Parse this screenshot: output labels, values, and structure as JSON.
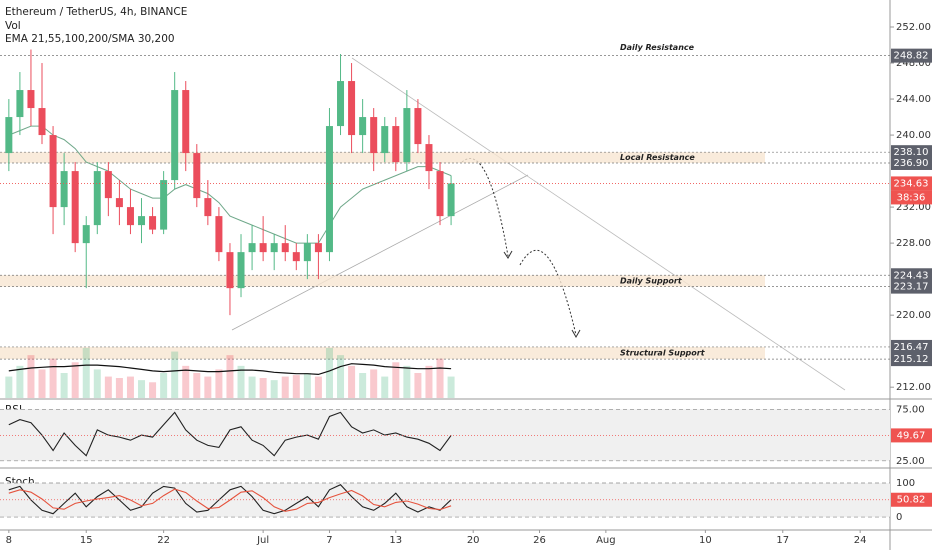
{
  "header": {
    "symbol": "Ethereum / TetherUS, 4h, BINANCE",
    "volume_label": "Vol",
    "indicators_label": "EMA 21,55,100,200/SMA 30,200"
  },
  "chart_data": [
    {
      "type": "candlestick",
      "up_color": "#53b987",
      "down_color": "#eb4d5c",
      "ema_color": "#6fa88a",
      "volume_ma_color": "#111111",
      "xlim": [
        7.2,
        87.7
      ],
      "xticks": [
        8,
        15,
        22,
        {
          "value": 31,
          "label": "Jul"
        },
        {
          "value": 37,
          "label": "7"
        },
        {
          "value": 43,
          "label": "13"
        },
        {
          "value": 50,
          "label": "20"
        },
        {
          "value": 56,
          "label": "26"
        },
        {
          "value": 62,
          "label": "Aug"
        },
        {
          "value": 71,
          "label": "10"
        },
        {
          "value": 78,
          "label": "17"
        },
        {
          "value": 85,
          "label": "24"
        }
      ],
      "ylim": [
        210.8,
        255
      ],
      "yticks": [
        {
          "value": 252,
          "label": "252.00"
        },
        {
          "value": 248,
          "label": "248.00"
        },
        {
          "value": 244,
          "label": "244.00"
        },
        {
          "value": 240,
          "label": "240.00"
        },
        {
          "value": 232,
          "label": "232.00"
        },
        {
          "value": 228,
          "label": "228.00"
        },
        {
          "value": 220,
          "label": "220.00"
        },
        {
          "value": 212,
          "label": "212.00"
        }
      ],
      "x": [
        8,
        9,
        10,
        11,
        12,
        13,
        14,
        15,
        16,
        17,
        18,
        19,
        20,
        21,
        22,
        23,
        24,
        25,
        26,
        27,
        28,
        29,
        30,
        31,
        32,
        33,
        34,
        35,
        36,
        37,
        38,
        39,
        40,
        41,
        42,
        43,
        44,
        45,
        46,
        47,
        48
      ],
      "open": [
        238,
        242,
        245,
        243,
        240,
        232,
        236,
        228,
        230,
        236,
        233,
        232,
        230,
        231,
        229.5,
        235,
        245,
        238,
        233,
        231,
        227,
        223,
        227,
        228,
        227,
        228,
        227,
        226,
        228,
        227,
        241,
        246,
        240,
        242,
        238,
        241,
        237,
        243,
        239,
        236,
        231
      ],
      "high": [
        244,
        247,
        249.5,
        248,
        241,
        238,
        237,
        231,
        237,
        237,
        235,
        234,
        233,
        232,
        236,
        247,
        246,
        239,
        235,
        232,
        228,
        229,
        230,
        231,
        229,
        230,
        228,
        229,
        229,
        243,
        249,
        248,
        244,
        243,
        242,
        242,
        245,
        244,
        240,
        237,
        235.5
      ],
      "low": [
        236,
        240,
        241,
        239,
        229,
        230,
        227,
        223,
        229,
        231,
        230,
        229,
        228,
        229,
        229,
        234,
        236,
        232,
        230,
        226,
        220,
        222,
        225,
        226,
        225,
        226,
        225,
        224,
        224,
        226,
        240,
        238,
        238,
        236,
        237,
        236,
        236,
        238,
        234,
        230,
        230
      ],
      "close": [
        242,
        245,
        243,
        240,
        232,
        236,
        228,
        230,
        236,
        233,
        232,
        230,
        231,
        229.5,
        235,
        245,
        238,
        233,
        231,
        227,
        223,
        227,
        228,
        227,
        228,
        227,
        226,
        228,
        227,
        241,
        246,
        240,
        242,
        238,
        241,
        237,
        243,
        239,
        236,
        231,
        234.63
      ],
      "volume": [
        30,
        45,
        60,
        40,
        55,
        35,
        50,
        70,
        40,
        30,
        28,
        30,
        25,
        22,
        35,
        65,
        45,
        35,
        30,
        40,
        60,
        45,
        30,
        28,
        25,
        30,
        32,
        35,
        30,
        70,
        60,
        45,
        35,
        40,
        30,
        50,
        45,
        35,
        45,
        55,
        30
      ],
      "volume_ma": [
        38,
        40,
        42,
        43,
        44,
        44,
        45,
        46,
        46,
        45,
        44,
        42,
        40,
        38,
        37,
        38,
        39,
        38,
        37,
        37,
        38,
        39,
        39,
        38,
        36,
        35,
        34,
        34,
        33,
        38,
        44,
        48,
        47,
        46,
        44,
        43,
        42,
        41,
        41,
        42,
        41
      ],
      "ema": [
        240,
        240.5,
        241,
        241,
        240,
        239.5,
        238.5,
        237,
        236.5,
        236,
        235,
        234,
        233.5,
        233,
        233,
        234,
        234.5,
        234,
        233.5,
        232.5,
        231,
        230.5,
        230,
        229.5,
        229,
        228.5,
        228,
        228,
        228,
        230,
        232,
        233,
        234,
        234.5,
        235,
        235.5,
        236,
        236.5,
        236.5,
        236,
        235.5
      ],
      "levels": [
        {
          "name": "Daily Resistance",
          "values": [
            {
              "value": 248.82,
              "label": "248.82"
            }
          ]
        },
        {
          "name": "Local Resistance",
          "values": [
            {
              "value": 238.1,
              "label": "238.10"
            },
            {
              "value": 236.9,
              "label": "236.90"
            }
          ]
        },
        {
          "name": "Daily Support",
          "values": [
            {
              "value": 224.43,
              "label": "224.43"
            },
            {
              "value": 223.17,
              "label": "223.17"
            }
          ]
        },
        {
          "name": "Structural Support",
          "values": [
            {
              "value": 216.47,
              "label": "216.47"
            },
            {
              "value": 215.12,
              "label": "215.12"
            }
          ]
        }
      ],
      "last": {
        "value": 234.63,
        "label": "234.63"
      },
      "countdown": "38:36"
    },
    {
      "type": "line",
      "title": "RSI",
      "color": "#222222",
      "ylim": [
        19,
        85
      ],
      "yticks": [
        {
          "value": 75,
          "label": "75.00"
        },
        {
          "value": 25,
          "label": "25.00"
        }
      ],
      "values": [
        60,
        65,
        62,
        50,
        35,
        52,
        40,
        30,
        55,
        50,
        48,
        45,
        50,
        48,
        60,
        72,
        55,
        45,
        40,
        38,
        55,
        58,
        45,
        40,
        30,
        45,
        48,
        50,
        46,
        68,
        72,
        58,
        52,
        55,
        50,
        52,
        48,
        46,
        42,
        35,
        49.67
      ],
      "last": {
        "value": 49.67,
        "label": "49.67"
      }
    },
    {
      "type": "line",
      "title": "Stoch",
      "ylim": [
        -35,
        141
      ],
      "yticks": [
        100,
        0
      ],
      "series": [
        {
          "color": "#222222",
          "values": [
            80,
            90,
            50,
            20,
            10,
            40,
            70,
            30,
            60,
            80,
            50,
            20,
            30,
            70,
            90,
            85,
            40,
            15,
            20,
            50,
            80,
            90,
            60,
            20,
            10,
            20,
            40,
            60,
            30,
            80,
            95,
            60,
            30,
            20,
            40,
            70,
            30,
            15,
            30,
            20,
            50.82
          ]
        },
        {
          "color": "#e5533d",
          "values": [
            70,
            80,
            73,
            53,
            27,
            23,
            40,
            47,
            53,
            57,
            63,
            50,
            33,
            40,
            63,
            82,
            72,
            47,
            25,
            28,
            50,
            73,
            77,
            57,
            30,
            17,
            23,
            40,
            43,
            57,
            68,
            78,
            62,
            37,
            30,
            43,
            47,
            38,
            25,
            22,
            33
          ]
        }
      ],
      "last": {
        "value": 50.82,
        "label": "50.82"
      }
    }
  ]
}
